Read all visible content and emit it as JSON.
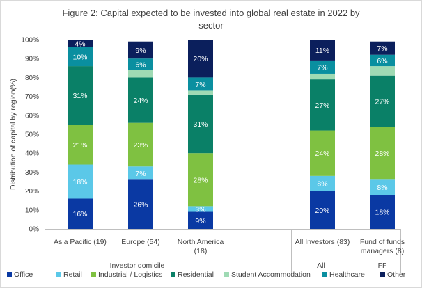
{
  "chart_data": {
    "type": "bar",
    "stacked": true,
    "title_lines": [
      "Figure 2: Capital expected to be invested into global real estate in 2022  by",
      "sector"
    ],
    "ylabel": "Distribution of capital by region(%)",
    "ylim": [
      0,
      100
    ],
    "yticks": [
      "0%",
      "10%",
      "20%",
      "30%",
      "40%",
      "50%",
      "60%",
      "70%",
      "80%",
      "90%",
      "100%"
    ],
    "categories": [
      {
        "label_lines": [
          "Asia Pacific (19)"
        ],
        "slot": 0
      },
      {
        "label_lines": [
          "Europe (54)"
        ],
        "slot": 1
      },
      {
        "label_lines": [
          "North America",
          "(18)"
        ],
        "slot": 2
      },
      {
        "label_lines": [
          "All Investors (83)"
        ],
        "slot": 4
      },
      {
        "label_lines": [
          "Fund of funds",
          "managers (8)"
        ],
        "slot": 5
      }
    ],
    "groups": [
      {
        "label": "Investor domicile",
        "from": 0,
        "to": 2
      },
      {
        "label": "All",
        "from": 4,
        "to": 4
      },
      {
        "label": "FF",
        "from": 5,
        "to": 5
      }
    ],
    "series": [
      {
        "name": "Office",
        "color": "#0a39a3",
        "values": [
          16,
          26,
          9,
          20,
          18
        ],
        "labels": [
          "16%",
          "26%",
          "9%",
          "20%",
          "18%"
        ],
        "label_color": "#ffffff"
      },
      {
        "name": "Retail",
        "color": "#5bc8e8",
        "values": [
          18,
          7,
          3,
          8,
          8
        ],
        "labels": [
          "18%",
          "7%",
          "3%",
          "8%",
          "8%"
        ],
        "label_color": "#ffffff"
      },
      {
        "name": "Industrial / Logistics",
        "color": "#7fc141",
        "values": [
          21,
          23,
          28,
          24,
          28
        ],
        "labels": [
          "21%",
          "23%",
          "28%",
          "24%",
          "28%"
        ],
        "label_color": "#ffffff"
      },
      {
        "name": "Residential",
        "color": "#0a8067",
        "values": [
          31,
          24,
          31,
          27,
          27
        ],
        "labels": [
          "31%",
          "24%",
          "31%",
          "27%",
          "27%"
        ],
        "label_color": "#ffffff"
      },
      {
        "name": "Student Accommodation",
        "color": "#9fdab4",
        "values": [
          0,
          4,
          2,
          3,
          5
        ],
        "labels": [
          "",
          "",
          "",
          "",
          ""
        ],
        "label_color": "#ffffff"
      },
      {
        "name": "Healthcare",
        "color": "#0a8fa0",
        "values": [
          10,
          6,
          7,
          7,
          6
        ],
        "labels": [
          "10%",
          "6%",
          "7%",
          "7%",
          "6%"
        ],
        "label_color": "#ffffff"
      },
      {
        "name": "Other",
        "color": "#0b1f5c",
        "values": [
          4,
          9,
          20,
          11,
          7
        ],
        "labels": [
          "4%",
          "9%",
          "20%",
          "11%",
          "7%"
        ],
        "label_color": "#ffffff"
      }
    ],
    "legend_position": "bottom"
  }
}
